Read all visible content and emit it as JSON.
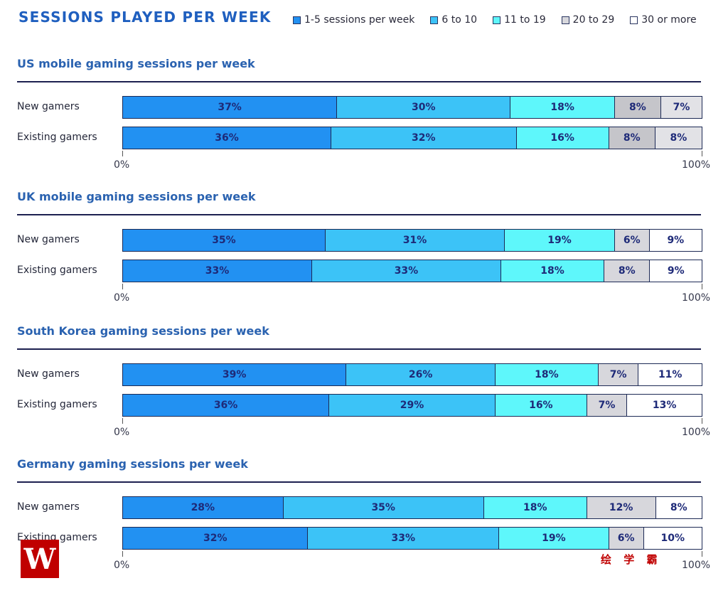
{
  "chart_data": {
    "type": "bar",
    "orientation": "horizontal-stacked-100",
    "title": "SESSIONS PLAYED PER WEEK",
    "legend": {
      "placement": "top-right",
      "entries": [
        {
          "label": "1-5 sessions per week",
          "color": "#2291f2"
        },
        {
          "label": "6 to 10",
          "color": "#3cc3f7"
        },
        {
          "label": "11 to 19",
          "color": "#5ef7fb"
        },
        {
          "label": "20 to 29",
          "color": "#d7d7dc"
        },
        {
          "label": "30 or more",
          "color": "#ffffff"
        }
      ]
    },
    "xlim": [
      0,
      100
    ],
    "x_tick_labels": [
      "0%",
      "100%"
    ],
    "charts": [
      {
        "title": "US mobile gaming sessions per week",
        "segment_colors": [
          "#2291f2",
          "#3cc3f7",
          "#5ef7fb",
          "#c5c5ca",
          "#e2e2e6"
        ],
        "categories": [
          "New gamers",
          "Existing gamers"
        ],
        "series": [
          {
            "name": "1-5 sessions per week",
            "values": [
              37,
              36
            ]
          },
          {
            "name": "6 to 10",
            "values": [
              30,
              32
            ]
          },
          {
            "name": "11 to 19",
            "values": [
              18,
              16
            ]
          },
          {
            "name": "20 to 29",
            "values": [
              8,
              8
            ]
          },
          {
            "name": "30 or more",
            "values": [
              7,
              8
            ]
          }
        ]
      },
      {
        "title": "UK mobile gaming sessions per week",
        "segment_colors": [
          "#2291f2",
          "#3cc3f7",
          "#5ef7fb",
          "#d7d7dc",
          "#ffffff"
        ],
        "categories": [
          "New gamers",
          "Existing gamers"
        ],
        "series": [
          {
            "name": "1-5 sessions per week",
            "values": [
              35,
              33
            ]
          },
          {
            "name": "6 to 10",
            "values": [
              31,
              33
            ]
          },
          {
            "name": "11 to 19",
            "values": [
              19,
              18
            ]
          },
          {
            "name": "20 to 29",
            "values": [
              6,
              8
            ]
          },
          {
            "name": "30 or more",
            "values": [
              9,
              9
            ]
          }
        ]
      },
      {
        "title": "South Korea gaming sessions per week",
        "segment_colors": [
          "#2291f2",
          "#3cc3f7",
          "#5ef7fb",
          "#d7d7dc",
          "#ffffff"
        ],
        "categories": [
          "New gamers",
          "Existing gamers"
        ],
        "series": [
          {
            "name": "1-5 sessions per week",
            "values": [
              39,
              36
            ]
          },
          {
            "name": "6 to 10",
            "values": [
              26,
              29
            ]
          },
          {
            "name": "11 to 19",
            "values": [
              18,
              16
            ]
          },
          {
            "name": "20 to 29",
            "values": [
              7,
              7
            ]
          },
          {
            "name": "30 or more",
            "values": [
              11,
              13
            ]
          }
        ]
      },
      {
        "title": "Germany gaming sessions per week",
        "segment_colors": [
          "#2291f2",
          "#3cc3f7",
          "#5ef7fb",
          "#d7d7dc",
          "#ffffff"
        ],
        "categories": [
          "New gamers",
          "Existing gamers"
        ],
        "series": [
          {
            "name": "1-5 sessions per week",
            "values": [
              28,
              32
            ]
          },
          {
            "name": "6 to 10",
            "values": [
              35,
              33
            ]
          },
          {
            "name": "11 to 19",
            "values": [
              18,
              19
            ]
          },
          {
            "name": "20 to 29",
            "values": [
              12,
              6
            ]
          },
          {
            "name": "30 or more",
            "values": [
              8,
              10
            ]
          }
        ]
      }
    ]
  },
  "watermark": {
    "logo_glyph": "W",
    "text": "绘 学 霸"
  }
}
